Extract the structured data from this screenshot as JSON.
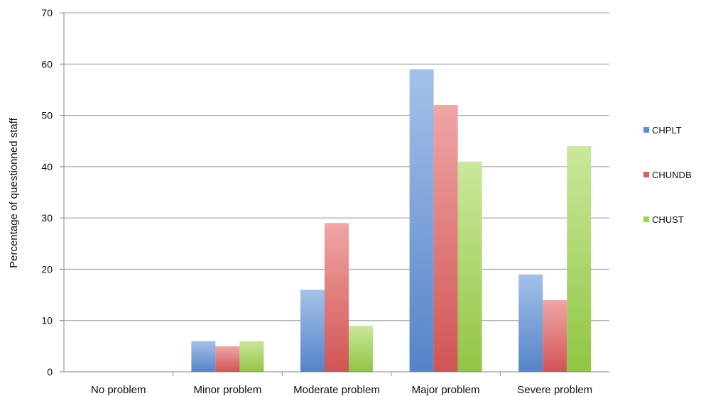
{
  "chart_data": {
    "type": "bar",
    "title": "",
    "xlabel": "",
    "ylabel": "Percentage of questionned staff",
    "categories": [
      "No problem",
      "Minor problem",
      "Moderate problem",
      "Major problem",
      "Severe problem"
    ],
    "series": [
      {
        "name": "CHPLT",
        "color": "#5b8fd9",
        "values": [
          0,
          6,
          16,
          59,
          19
        ]
      },
      {
        "name": "CHUNDB",
        "color": "#e35b5b",
        "values": [
          0,
          5,
          29,
          52,
          14
        ]
      },
      {
        "name": "CHUST",
        "color": "#9ed64a",
        "values": [
          0,
          6,
          9,
          41,
          44
        ]
      }
    ],
    "ylim": [
      0,
      70
    ],
    "yticks": [
      0,
      10,
      20,
      30,
      40,
      50,
      60,
      70
    ],
    "grid": true,
    "legend_position": "right"
  }
}
